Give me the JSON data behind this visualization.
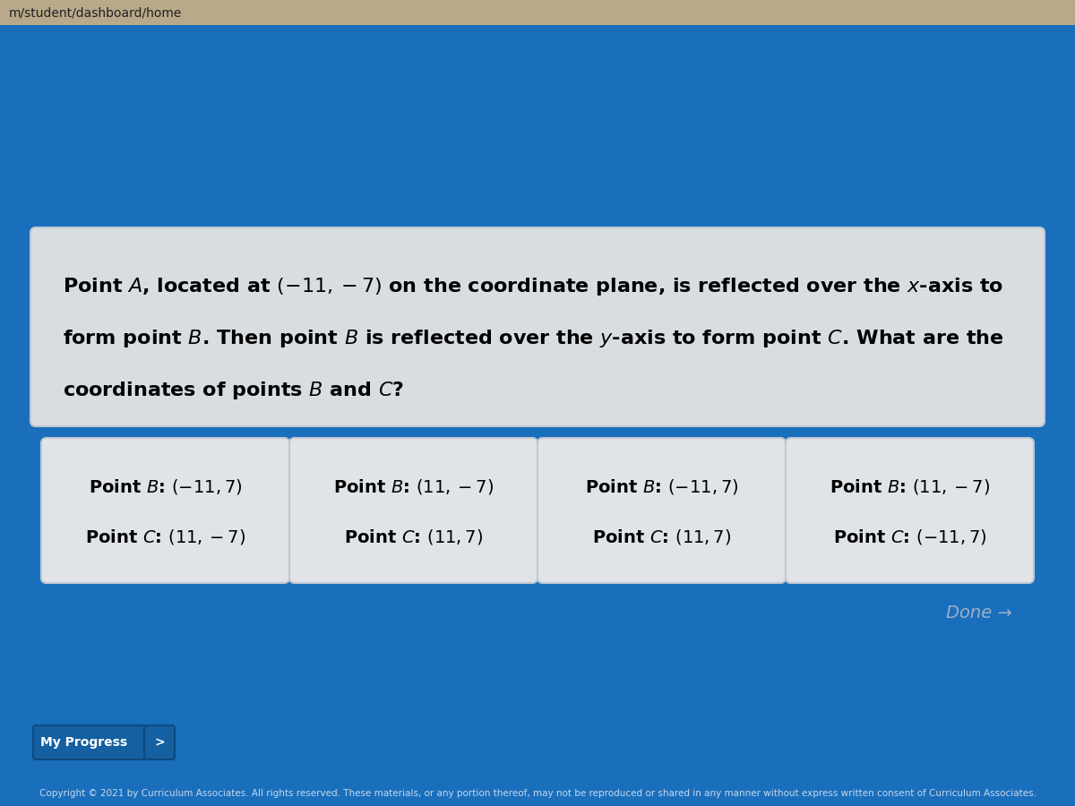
{
  "bg_color": "#1a6fbd",
  "header_bg_color": "#b8a98a",
  "header_text": "m/student/dashboard/home",
  "header_text_color": "#222222",
  "question_box_facecolor": "#d8dde2",
  "question_box_edgecolor": "#c0c8d0",
  "question_text_line1": "Point $A$, located at $(-11, -7)$ on the coordinate plane, is reflected over the $x$-axis to",
  "question_text_line2": "form point $B$. Then point $B$ is reflected over the $y$-axis to form point $C$. What are the",
  "question_text_line3": "coordinates of points $B$ and $C$?",
  "question_fontsize": 16,
  "answer_box_facecolor": "#e0e4e8",
  "answer_box_edgecolor": "#c0c8d0",
  "answers": [
    {
      "line1": "Point $B$: $(-11, 7)$",
      "line2": "Point $C$: $(11, -7)$"
    },
    {
      "line1": "Point $B$: $(11, -7)$",
      "line2": "Point $C$: $(11, 7)$"
    },
    {
      "line1": "Point $B$: $(-11, 7)$",
      "line2": "Point $C$: $(11, 7)$"
    },
    {
      "line1": "Point $B$: $(11, -7)$",
      "line2": "Point $C$: $(-11, 7)$"
    }
  ],
  "answer_fontsize": 14,
  "done_text": "Done →",
  "done_color": "#9ab0c8",
  "done_fontsize": 14,
  "progress_text": "My Progress",
  "progress_arrow": ">",
  "progress_btn_color": "#1560a0",
  "progress_btn_edge": "#0d4a80",
  "progress_text_color": "#ffffff",
  "progress_fontsize": 10,
  "copyright_text": "Copyright © 2021 by Curriculum Associates. All rights reserved. These materials, or any portion thereof, may not be reproduced or shared in any manner without express written consent of Curriculum Associates.",
  "copyright_color": "#c8d8e8",
  "copyright_fontsize": 7.5,
  "header_fontsize": 10
}
